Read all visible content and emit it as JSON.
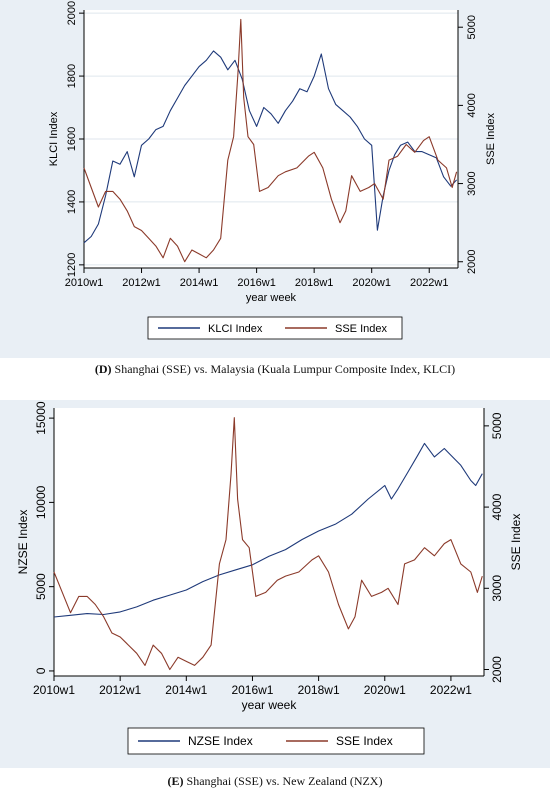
{
  "captions": [
    {
      "letter": "(D)",
      "text": " Shanghai (SSE) vs. Malaysia (Kuala Lumpur Composite Index, KLCI)"
    },
    {
      "letter": "(E)",
      "text": " Shanghai (SSE) vs. New Zealand (NZX)"
    }
  ],
  "colors": {
    "primary_series": "#1f3a7a",
    "sse_series": "#8b3a2a",
    "plot_bg": "#ffffff",
    "outer_bg": "#e9eff5",
    "grid": "#dfe6ee"
  },
  "chart_data": [
    {
      "type": "line",
      "xlabel": "year week",
      "ylabel_left": "KLCI Index",
      "ylabel_right": "SSE Index",
      "x_ticks": [
        "2010w1",
        "2012w1",
        "2014w1",
        "2016w1",
        "2018w1",
        "2020w1",
        "2022w1"
      ],
      "x_tick_years": [
        2010,
        2012,
        2014,
        2016,
        2018,
        2020,
        2022
      ],
      "x_range": [
        2010,
        2023.0
      ],
      "y_left_ticks": [
        1200,
        1400,
        1600,
        1800,
        2000
      ],
      "y_left_range": [
        1190,
        2010
      ],
      "y_right_ticks": [
        2000,
        3000,
        4000,
        5000
      ],
      "y_right_range": [
        1920,
        5220
      ],
      "grid": true,
      "legend": "bottom",
      "series": [
        {
          "name": "KLCI Index",
          "axis": "left",
          "x": [
            2010.0,
            2010.25,
            2010.5,
            2010.75,
            2011.0,
            2011.25,
            2011.5,
            2011.75,
            2012.0,
            2012.25,
            2012.5,
            2012.75,
            2013.0,
            2013.25,
            2013.5,
            2013.75,
            2014.0,
            2014.25,
            2014.5,
            2014.75,
            2015.0,
            2015.25,
            2015.5,
            2015.75,
            2016.0,
            2016.25,
            2016.5,
            2016.75,
            2017.0,
            2017.25,
            2017.5,
            2017.75,
            2018.0,
            2018.25,
            2018.5,
            2018.75,
            2019.0,
            2019.25,
            2019.5,
            2019.75,
            2020.0,
            2020.2,
            2020.4,
            2020.6,
            2020.8,
            2021.0,
            2021.25,
            2021.5,
            2021.75,
            2022.0,
            2022.25,
            2022.5,
            2022.75,
            2022.95
          ],
          "y": [
            1270,
            1290,
            1330,
            1420,
            1530,
            1520,
            1560,
            1480,
            1580,
            1600,
            1630,
            1640,
            1690,
            1730,
            1770,
            1800,
            1830,
            1850,
            1880,
            1860,
            1820,
            1850,
            1790,
            1690,
            1640,
            1700,
            1680,
            1650,
            1690,
            1720,
            1760,
            1750,
            1800,
            1870,
            1760,
            1710,
            1690,
            1670,
            1640,
            1600,
            1580,
            1310,
            1420,
            1500,
            1550,
            1580,
            1590,
            1560,
            1560,
            1550,
            1540,
            1480,
            1450,
            1470
          ]
        },
        {
          "name": "SSE Index",
          "axis": "right",
          "x": [
            2010.0,
            2010.25,
            2010.5,
            2010.75,
            2011.0,
            2011.25,
            2011.5,
            2011.75,
            2012.0,
            2012.25,
            2012.5,
            2012.75,
            2013.0,
            2013.25,
            2013.5,
            2013.75,
            2014.0,
            2014.25,
            2014.5,
            2014.75,
            2015.0,
            2015.2,
            2015.35,
            2015.45,
            2015.55,
            2015.7,
            2015.9,
            2016.1,
            2016.4,
            2016.75,
            2017.0,
            2017.4,
            2017.8,
            2018.0,
            2018.3,
            2018.6,
            2018.9,
            2019.1,
            2019.3,
            2019.6,
            2019.9,
            2020.1,
            2020.4,
            2020.6,
            2020.9,
            2021.2,
            2021.5,
            2021.8,
            2022.0,
            2022.3,
            2022.6,
            2022.8,
            2022.95
          ],
          "y": [
            3200,
            2950,
            2700,
            2900,
            2900,
            2800,
            2650,
            2450,
            2400,
            2300,
            2200,
            2050,
            2300,
            2200,
            2000,
            2150,
            2100,
            2050,
            2150,
            2300,
            3300,
            3600,
            4400,
            5100,
            4100,
            3600,
            3500,
            2900,
            2950,
            3100,
            3150,
            3200,
            3350,
            3400,
            3200,
            2800,
            2500,
            2650,
            3100,
            2900,
            2950,
            3000,
            2800,
            3300,
            3350,
            3500,
            3400,
            3550,
            3600,
            3300,
            3200,
            2950,
            3150
          ]
        }
      ]
    },
    {
      "type": "line",
      "xlabel": "year week",
      "ylabel_left": "NZSE Index",
      "ylabel_right": "SSE Index",
      "x_ticks": [
        "2010w1",
        "2012w1",
        "2014w1",
        "2016w1",
        "2018w1",
        "2020w1",
        "2022w1"
      ],
      "x_tick_years": [
        2010,
        2012,
        2014,
        2016,
        2018,
        2020,
        2022
      ],
      "x_range": [
        2010,
        2023.0
      ],
      "y_left_ticks": [
        0,
        5000,
        10000,
        15000
      ],
      "y_left_range": [
        -300,
        15600
      ],
      "y_right_ticks": [
        2000,
        3000,
        4000,
        5000
      ],
      "y_right_range": [
        1920,
        5220
      ],
      "grid": false,
      "legend": "bottom",
      "series": [
        {
          "name": "NZSE Index",
          "axis": "left",
          "x": [
            2010.0,
            2010.5,
            2011.0,
            2011.5,
            2012.0,
            2012.5,
            2013.0,
            2013.5,
            2014.0,
            2014.5,
            2015.0,
            2015.5,
            2016.0,
            2016.5,
            2017.0,
            2017.5,
            2018.0,
            2018.5,
            2019.0,
            2019.5,
            2020.0,
            2020.2,
            2020.4,
            2020.7,
            2021.0,
            2021.2,
            2021.5,
            2021.8,
            2022.0,
            2022.3,
            2022.6,
            2022.75,
            2022.95
          ],
          "y": [
            3200,
            3300,
            3400,
            3350,
            3500,
            3800,
            4200,
            4500,
            4800,
            5300,
            5700,
            6000,
            6300,
            6800,
            7200,
            7800,
            8300,
            8700,
            9300,
            10200,
            11000,
            10200,
            10800,
            11800,
            12800,
            13500,
            12700,
            13200,
            12800,
            12200,
            11300,
            11000,
            11700
          ]
        },
        {
          "name": "SSE Index",
          "axis": "right",
          "x": [
            2010.0,
            2010.25,
            2010.5,
            2010.75,
            2011.0,
            2011.25,
            2011.5,
            2011.75,
            2012.0,
            2012.25,
            2012.5,
            2012.75,
            2013.0,
            2013.25,
            2013.5,
            2013.75,
            2014.0,
            2014.25,
            2014.5,
            2014.75,
            2015.0,
            2015.2,
            2015.35,
            2015.45,
            2015.55,
            2015.7,
            2015.9,
            2016.1,
            2016.4,
            2016.75,
            2017.0,
            2017.4,
            2017.8,
            2018.0,
            2018.3,
            2018.6,
            2018.9,
            2019.1,
            2019.3,
            2019.6,
            2019.9,
            2020.1,
            2020.4,
            2020.6,
            2020.9,
            2021.2,
            2021.5,
            2021.8,
            2022.0,
            2022.3,
            2022.6,
            2022.8,
            2022.95
          ],
          "y": [
            3200,
            2950,
            2700,
            2900,
            2900,
            2800,
            2650,
            2450,
            2400,
            2300,
            2200,
            2050,
            2300,
            2200,
            2000,
            2150,
            2100,
            2050,
            2150,
            2300,
            3300,
            3600,
            4400,
            5100,
            4100,
            3600,
            3500,
            2900,
            2950,
            3100,
            3150,
            3200,
            3350,
            3400,
            3200,
            2800,
            2500,
            2650,
            3100,
            2900,
            2950,
            3000,
            2800,
            3300,
            3350,
            3500,
            3400,
            3550,
            3600,
            3300,
            3200,
            2950,
            3150
          ]
        }
      ]
    }
  ]
}
